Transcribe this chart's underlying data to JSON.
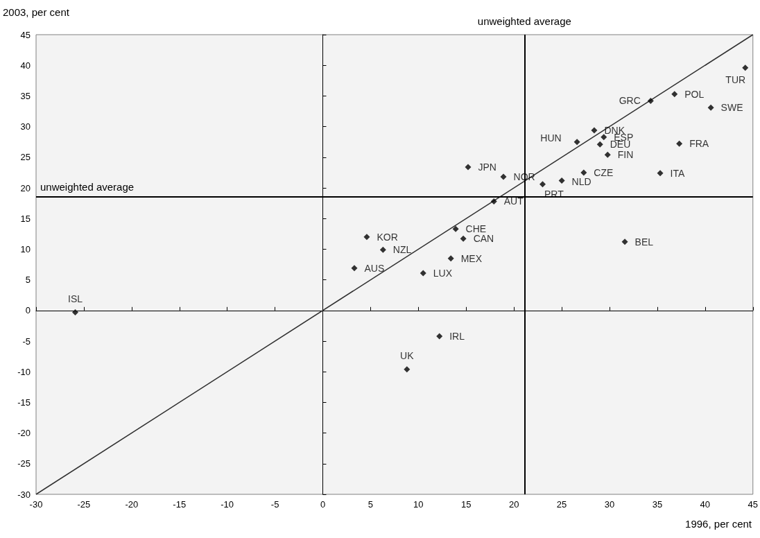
{
  "chart_data": {
    "type": "scatter",
    "xlabel": "1996, per cent",
    "ylabel": "2003, per cent",
    "marker": "diamond",
    "xlim": [
      -30,
      45
    ],
    "xticks": [
      -30,
      -25,
      -20,
      -15,
      -10,
      -5,
      0,
      5,
      10,
      15,
      20,
      25,
      30,
      35,
      40,
      45
    ],
    "ylim": [
      -30,
      45
    ],
    "yticks": [
      -30,
      -25,
      -20,
      -15,
      -10,
      -5,
      0,
      5,
      10,
      15,
      20,
      25,
      30,
      35,
      40,
      45
    ],
    "series": [
      {
        "type": "scatter",
        "color": "#000000",
        "x": [
          44.2,
          34.3,
          36.8,
          40.6,
          26.6,
          28.4,
          29.4,
          29.0,
          29.8,
          37.3,
          15.2,
          18.9,
          27.3,
          35.3,
          25.0,
          23.0,
          17.9,
          13.9,
          14.7,
          4.6,
          6.3,
          3.3,
          13.4,
          10.5,
          12.2,
          31.6,
          8.8,
          -25.9
        ],
        "values": [
          39.6,
          34.2,
          35.3,
          33.1,
          27.5,
          29.4,
          28.3,
          27.1,
          25.4,
          27.2,
          23.4,
          21.8,
          22.5,
          22.4,
          21.2,
          20.6,
          17.8,
          13.3,
          11.7,
          12.0,
          9.9,
          6.9,
          8.5,
          6.1,
          -4.2,
          11.2,
          -9.6,
          -0.3
        ]
      },
      {
        "type": "line",
        "color": "#303030",
        "x": [
          -30,
          45
        ],
        "values": [
          -30,
          45
        ],
        "marker": "none"
      }
    ],
    "ref_lines": [
      {
        "axis": "x",
        "value": 21.1,
        "label": "unweighted average",
        "color": "#000000"
      },
      {
        "axis": "y",
        "value": 18.6,
        "label": "unweighted average",
        "color": "#000000"
      }
    ],
    "annotations": [
      {
        "text": "TUR",
        "x": 44.2,
        "y": 39.6
      },
      {
        "text": "GRC",
        "x": 34.3,
        "y": 34.2
      },
      {
        "text": "POL",
        "x": 36.8,
        "y": 35.3
      },
      {
        "text": "SWE",
        "x": 40.6,
        "y": 33.1
      },
      {
        "text": "HUN",
        "x": 26.6,
        "y": 27.5
      },
      {
        "text": "DNK",
        "x": 28.4,
        "y": 29.4
      },
      {
        "text": "ESP",
        "x": 29.4,
        "y": 28.3
      },
      {
        "text": "DEU",
        "x": 29.0,
        "y": 27.1
      },
      {
        "text": "FIN",
        "x": 29.8,
        "y": 25.4
      },
      {
        "text": "FRA",
        "x": 37.3,
        "y": 27.2
      },
      {
        "text": "JPN",
        "x": 15.2,
        "y": 23.4
      },
      {
        "text": "NOR",
        "x": 18.9,
        "y": 21.8
      },
      {
        "text": "CZE",
        "x": 27.3,
        "y": 22.5
      },
      {
        "text": "ITA",
        "x": 35.3,
        "y": 22.4
      },
      {
        "text": "NLD",
        "x": 25.0,
        "y": 21.2
      },
      {
        "text": "PRT",
        "x": 23.0,
        "y": 20.6
      },
      {
        "text": "AUT",
        "x": 17.9,
        "y": 17.8
      },
      {
        "text": "CHE",
        "x": 13.9,
        "y": 13.3
      },
      {
        "text": "CAN",
        "x": 14.7,
        "y": 11.7
      },
      {
        "text": "KOR",
        "x": 4.6,
        "y": 12.0
      },
      {
        "text": "NZL",
        "x": 6.3,
        "y": 9.9
      },
      {
        "text": "AUS",
        "x": 3.3,
        "y": 6.9
      },
      {
        "text": "MEX",
        "x": 13.4,
        "y": 8.5
      },
      {
        "text": "LUX",
        "x": 10.5,
        "y": 6.1
      },
      {
        "text": "IRL",
        "x": 12.2,
        "y": -4.2
      },
      {
        "text": "BEL",
        "x": 31.6,
        "y": 11.2
      },
      {
        "text": "UK",
        "x": 8.8,
        "y": -9.6
      },
      {
        "text": "ISL",
        "x": -25.9,
        "y": -0.3
      }
    ]
  }
}
